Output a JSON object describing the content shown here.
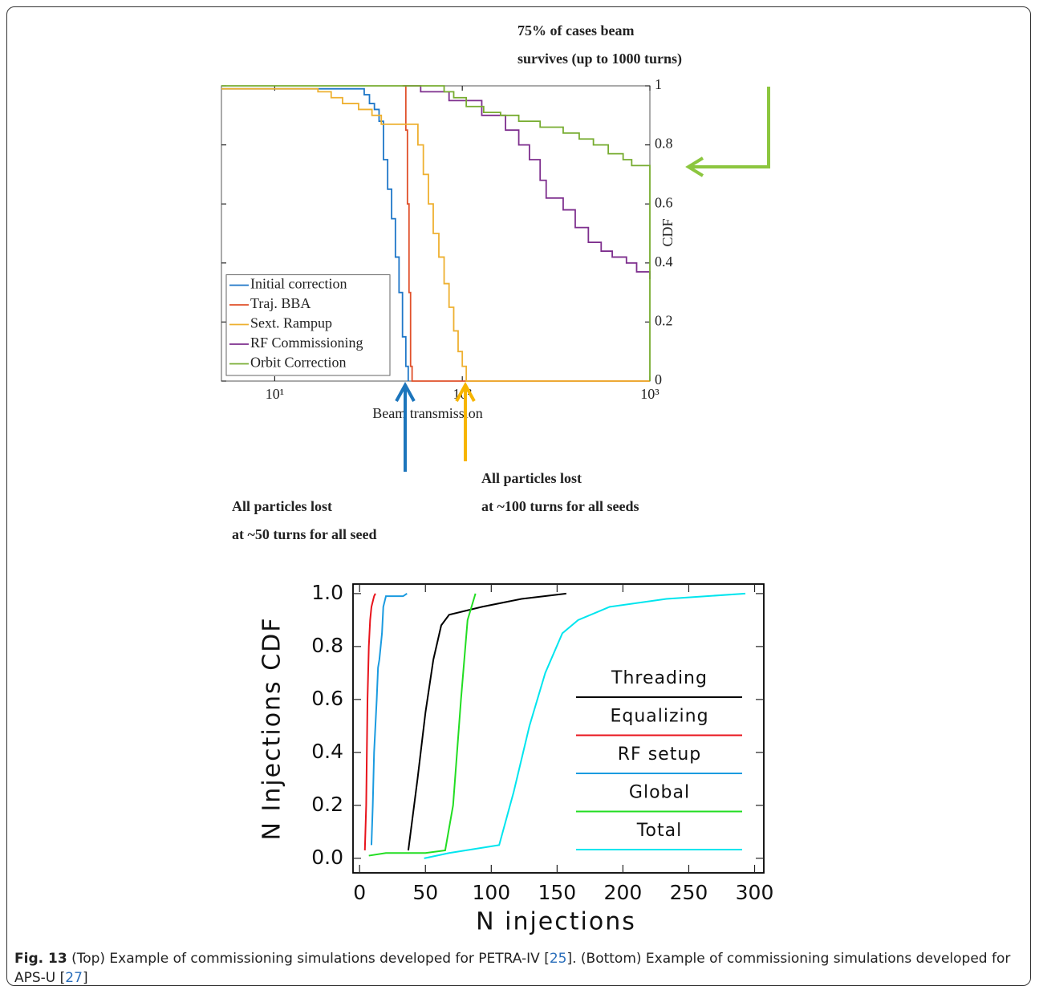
{
  "chart_data": [
    {
      "type": "line",
      "step": true,
      "xscale": "log",
      "xlabel": "Beam transmission",
      "ylabel": "CDF",
      "yaxis_side": "right",
      "xlim": [
        5.2,
        1000
      ],
      "ylim": [
        0,
        1
      ],
      "xticks": [
        {
          "value": 10,
          "label": "10¹"
        },
        {
          "value": 100,
          "label": "10²"
        },
        {
          "value": 1000,
          "label": "10³"
        }
      ],
      "yticks": [
        0,
        0.2,
        0.4,
        0.6,
        0.8,
        1
      ],
      "legend": "lower left",
      "series": [
        {
          "name": "Initial correction",
          "color": "#1f77c8",
          "x": [
            5.2,
            28,
            30,
            32,
            34,
            36,
            38,
            40,
            42,
            44,
            46,
            48,
            50,
            51.5
          ],
          "values": [
            0.99,
            0.99,
            0.97,
            0.94,
            0.92,
            0.88,
            0.75,
            0.65,
            0.55,
            0.42,
            0.3,
            0.15,
            0.05,
            0
          ]
        },
        {
          "name": "Traj. BBA",
          "color": "#e0502a",
          "x": [
            48,
            50,
            51,
            52,
            53,
            54,
            1000
          ],
          "values": [
            1,
            0.85,
            0.6,
            0.3,
            0.05,
            0,
            0
          ]
        },
        {
          "name": "Sext. Rampup",
          "color": "#eeb030",
          "x": [
            5.2,
            17,
            20,
            23,
            28,
            33,
            37,
            54,
            58,
            62,
            66,
            70,
            75,
            80,
            85,
            90,
            95,
            100,
            105,
            1000
          ],
          "values": [
            0.99,
            0.98,
            0.96,
            0.94,
            0.92,
            0.9,
            0.87,
            0.87,
            0.8,
            0.7,
            0.6,
            0.5,
            0.42,
            0.33,
            0.25,
            0.17,
            0.1,
            0.05,
            0,
            0
          ]
        },
        {
          "name": "RF Commissioning",
          "color": "#7e2f8e",
          "x": [
            49,
            60,
            85,
            127,
            170,
            200,
            228,
            260,
            280,
            345,
            400,
            470,
            550,
            630,
            750,
            850,
            1000
          ],
          "values": [
            1,
            0.98,
            0.95,
            0.9,
            0.85,
            0.8,
            0.75,
            0.68,
            0.62,
            0.58,
            0.52,
            0.47,
            0.44,
            0.42,
            0.4,
            0.37,
            0.345
          ]
        },
        {
          "name": "Orbit Correction",
          "color": "#77ac30",
          "x": [
            5.2,
            80,
            90,
            105,
            130,
            160,
            200,
            260,
            345,
            420,
            500,
            600,
            720,
            800,
            1000,
            1000
          ],
          "values": [
            1,
            0.98,
            0.96,
            0.93,
            0.91,
            0.9,
            0.88,
            0.86,
            0.84,
            0.82,
            0.8,
            0.77,
            0.75,
            0.73,
            0.72,
            0
          ]
        }
      ],
      "annotations": [
        {
          "lines": [
            "75% of cases beam",
            "survives (up to 1000 turns)"
          ],
          "color": "#8cc63f"
        },
        {
          "lines": [
            "All particles lost",
            "at ~50 turns for all seed"
          ],
          "color": "#1c75bc"
        },
        {
          "lines": [
            "All particles lost",
            "at ~100 turns for all seeds"
          ],
          "color": "#f7b500"
        }
      ]
    },
    {
      "type": "line",
      "xlabel": "N injections",
      "ylabel": "N Injections CDF",
      "xlim": [
        -5,
        307
      ],
      "ylim": [
        -0.055,
        1.036
      ],
      "xticks": [
        0,
        50,
        100,
        150,
        200,
        250,
        300
      ],
      "yticks": [
        {
          "value": 0,
          "label": "0.0"
        },
        {
          "value": 0.2,
          "label": "0.2"
        },
        {
          "value": 0.4,
          "label": "0.4"
        },
        {
          "value": 0.6,
          "label": "0.6"
        },
        {
          "value": 0.8,
          "label": "0.8"
        },
        {
          "value": 1,
          "label": "1.0"
        }
      ],
      "legend": "center right",
      "series": [
        {
          "name": "Threading",
          "color": "#000000",
          "x": [
            37,
            44,
            50,
            56,
            62,
            68,
            93,
            123,
            157
          ],
          "values": [
            0.03,
            0.3,
            0.55,
            0.75,
            0.88,
            0.92,
            0.95,
            0.98,
            1.0
          ]
        },
        {
          "name": "Equalizing",
          "color": "#e8141c",
          "x": [
            4,
            5,
            6,
            7,
            8,
            9,
            10,
            11,
            12
          ],
          "values": [
            0.03,
            0.2,
            0.6,
            0.8,
            0.9,
            0.95,
            0.97,
            0.99,
            1.0
          ]
        },
        {
          "name": "RF  setup",
          "color": "#1b9be0",
          "x": [
            9,
            10,
            11,
            12,
            13,
            14,
            15,
            17,
            18,
            20,
            33,
            36
          ],
          "values": [
            0.05,
            0.2,
            0.4,
            0.5,
            0.6,
            0.72,
            0.75,
            0.85,
            0.95,
            0.99,
            0.99,
            1.0
          ]
        },
        {
          "name": "Global",
          "color": "#22dd22",
          "x": [
            7,
            20,
            50,
            65,
            71,
            77,
            82,
            88
          ],
          "values": [
            0.01,
            0.02,
            0.02,
            0.03,
            0.2,
            0.6,
            0.9,
            1.0
          ]
        },
        {
          "name": "Total",
          "color": "#00e5ee",
          "x": [
            49,
            68,
            106,
            117,
            129,
            141,
            154,
            166,
            190,
            233,
            293
          ],
          "values": [
            0.0,
            0.02,
            0.05,
            0.25,
            0.5,
            0.7,
            0.85,
            0.9,
            0.95,
            0.98,
            1.0
          ]
        }
      ]
    }
  ],
  "caption": {
    "label": "Fig. 13",
    "parts": [
      "(Top) Example of commissioning simulations developed for PETRA-IV [",
      "25",
      "]. (Bottom) Example of commissioning simulations developed for APS-U [",
      "27",
      "]"
    ]
  }
}
